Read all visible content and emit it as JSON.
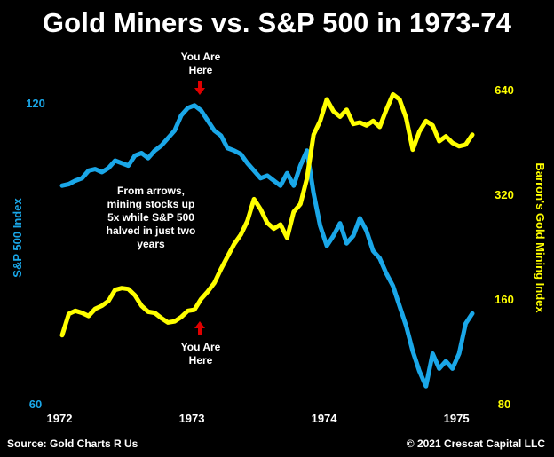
{
  "title": "Gold Miners vs. S&P 500 in 1973-74",
  "footer": {
    "source": "Source: Gold Charts R Us",
    "copyright": "© 2021 Crescat Capital LLC"
  },
  "annotations": {
    "top_marker": {
      "line1": "You Are",
      "line2": "Here"
    },
    "bottom_marker": {
      "line1": "You Are",
      "line2": "Here"
    },
    "note": [
      "From arrows,",
      "mining stocks up",
      "5x while S&P 500",
      "halved in just two",
      "years"
    ]
  },
  "colors": {
    "background": "#000000",
    "spx": "#1aa7e8",
    "gold": "#ffff00",
    "arrow": "#e00000",
    "text": "#ffffff"
  },
  "chart_data": {
    "type": "line",
    "title": "Gold Miners vs. S&P 500 in 1973-74",
    "xlabel": "",
    "x_ticks": [
      "1972",
      "1973",
      "1974",
      "1975"
    ],
    "xlim": [
      1972.0,
      1975.1
    ],
    "left_axis": {
      "label": "S&P 500 Index",
      "ticks": [
        "120",
        "60"
      ],
      "ylim": [
        60,
        120
      ]
    },
    "right_axis": {
      "label": "Barron's Gold Mining Index",
      "ticks": [
        "640",
        "320",
        "160",
        "80"
      ],
      "ylim": [
        80,
        640
      ],
      "scale": "log2"
    },
    "grid": false,
    "series": [
      {
        "name": "S&P 500 Index",
        "axis": "left",
        "x": [
          1972.0,
          1972.05,
          1972.1,
          1972.15,
          1972.2,
          1972.25,
          1972.3,
          1972.35,
          1972.4,
          1972.45,
          1972.5,
          1972.55,
          1972.6,
          1972.65,
          1972.7,
          1972.75,
          1972.8,
          1972.85,
          1972.9,
          1972.95,
          1973.0,
          1973.05,
          1973.1,
          1973.15,
          1973.2,
          1973.25,
          1973.3,
          1973.35,
          1973.4,
          1973.45,
          1973.5,
          1973.55,
          1973.6,
          1973.65,
          1973.7,
          1973.75,
          1973.8,
          1973.85,
          1973.9,
          1973.95,
          1974.0,
          1974.05,
          1974.1,
          1974.15,
          1974.2,
          1974.25,
          1974.3,
          1974.35,
          1974.4,
          1974.45,
          1974.5,
          1974.55,
          1974.6,
          1974.65,
          1974.7,
          1974.75,
          1974.8,
          1974.85,
          1974.9,
          1974.95,
          1975.0,
          1975.05,
          1975.1
        ],
        "values": [
          103.5,
          103.8,
          104.5,
          105.0,
          106.5,
          106.8,
          106.2,
          107.0,
          108.5,
          108.0,
          107.5,
          109.5,
          110.0,
          109.0,
          110.5,
          111.5,
          113.0,
          114.5,
          117.5,
          119.0,
          119.5,
          118.5,
          116.5,
          114.5,
          113.5,
          111.0,
          110.5,
          109.8,
          108.0,
          106.5,
          105.0,
          105.5,
          104.5,
          103.5,
          106.0,
          103.5,
          107.5,
          110.5,
          102.0,
          95.5,
          91.5,
          93.5,
          96.0,
          92.0,
          93.5,
          97.0,
          94.5,
          90.5,
          89.0,
          86.0,
          83.5,
          79.5,
          75.5,
          70.5,
          66.5,
          63.5,
          70.0,
          67.0,
          68.5,
          67.0,
          70.0,
          76.0,
          78.0
        ]
      },
      {
        "name": "Barron's Gold Mining Index",
        "axis": "right",
        "x": [
          1972.0,
          1972.05,
          1972.1,
          1972.15,
          1972.2,
          1972.25,
          1972.3,
          1972.35,
          1972.4,
          1972.45,
          1972.5,
          1972.55,
          1972.6,
          1972.65,
          1972.7,
          1972.75,
          1972.8,
          1972.85,
          1972.9,
          1972.95,
          1973.0,
          1973.05,
          1973.1,
          1973.15,
          1973.2,
          1973.25,
          1973.3,
          1973.35,
          1973.4,
          1973.45,
          1973.5,
          1973.55,
          1973.6,
          1973.65,
          1973.7,
          1973.75,
          1973.8,
          1973.85,
          1973.9,
          1973.95,
          1974.0,
          1974.05,
          1974.1,
          1974.15,
          1974.2,
          1974.25,
          1974.3,
          1974.35,
          1974.4,
          1974.45,
          1974.5,
          1974.55,
          1974.6,
          1974.65,
          1974.7,
          1974.75,
          1974.8,
          1974.85,
          1974.9,
          1974.95,
          1975.0,
          1975.05,
          1975.1
        ],
        "values": [
          126,
          145,
          148,
          146,
          143,
          150,
          153,
          158,
          170,
          172,
          171,
          164,
          153,
          147,
          146,
          141,
          137,
          138,
          142,
          148,
          149,
          160,
          168,
          178,
          195,
          212,
          230,
          245,
          268,
          310,
          290,
          265,
          255,
          262,
          240,
          285,
          300,
          355,
          475,
          520,
          600,
          555,
          535,
          560,
          510,
          515,
          505,
          520,
          500,
          560,
          620,
          600,
          530,
          430,
          485,
          520,
          505,
          455,
          470,
          450,
          440,
          445,
          475
        ]
      }
    ]
  }
}
